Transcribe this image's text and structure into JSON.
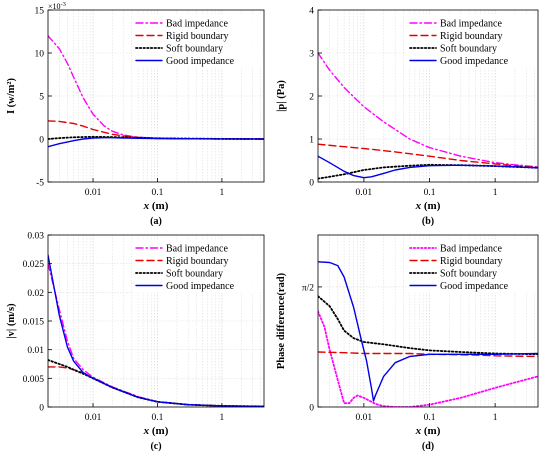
{
  "chart_data": [
    {
      "type": "line",
      "panel_label": "(a)",
      "xlabel": "x (m)",
      "ylabel": "I (w/m²)",
      "y_multiplier_label": "×10",
      "y_multiplier_exp": "-3",
      "xscale": "log",
      "xlim": [
        0.002,
        4.5
      ],
      "ylim": [
        -5,
        15
      ],
      "xticks": [
        0.01,
        0.1,
        1
      ],
      "xtick_labels": [
        "0.01",
        "0.1",
        "1"
      ],
      "yticks": [
        -5,
        0,
        5,
        10,
        15
      ],
      "ytick_labels": [
        "-5",
        "0",
        "5",
        "10",
        "15"
      ],
      "grid": true,
      "legend_position": "top-right",
      "series": [
        {
          "name": "Bad impedance",
          "color": "#ff00ff",
          "dash": "dashdot",
          "x": [
            0.002,
            0.003,
            0.004,
            0.005,
            0.007,
            0.01,
            0.015,
            0.02,
            0.03,
            0.05,
            0.1,
            0.2,
            0.5,
            1,
            2,
            4.5
          ],
          "y": [
            12,
            10.5,
            8.8,
            7.2,
            4.8,
            2.9,
            1.5,
            0.9,
            0.45,
            0.2,
            0.08,
            0.04,
            0.02,
            0.01,
            0.005,
            0.0
          ]
        },
        {
          "name": "Rigid boundary",
          "color": "#e60000",
          "dash": "dashed",
          "x": [
            0.002,
            0.003,
            0.005,
            0.007,
            0.01,
            0.02,
            0.03,
            0.05,
            0.1,
            0.3,
            1,
            4.5
          ],
          "y": [
            2.1,
            2.05,
            1.8,
            1.5,
            1.1,
            0.55,
            0.35,
            0.18,
            0.08,
            0.03,
            0.01,
            0.0
          ]
        },
        {
          "name": "Soft boundary",
          "color": "#000000",
          "dash": "dotted",
          "x": [
            0.002,
            0.003,
            0.005,
            0.01,
            0.02,
            0.05,
            0.1,
            0.5,
            1,
            4.5
          ],
          "y": [
            0.0,
            0.1,
            0.2,
            0.25,
            0.22,
            0.15,
            0.08,
            0.03,
            0.01,
            0.0
          ]
        },
        {
          "name": "Good impedance",
          "color": "#0000e6",
          "dash": "solid",
          "x": [
            0.002,
            0.003,
            0.005,
            0.007,
            0.01,
            0.015,
            0.02,
            0.03,
            0.05,
            0.1,
            0.5,
            1,
            4.5
          ],
          "y": [
            -0.9,
            -0.55,
            -0.2,
            0.0,
            0.1,
            0.15,
            0.15,
            0.12,
            0.08,
            0.05,
            0.02,
            0.01,
            0.0
          ]
        }
      ]
    },
    {
      "type": "line",
      "panel_label": "(b)",
      "xlabel": "x (m)",
      "ylabel": "|p| (Pa)",
      "xscale": "log",
      "xlim": [
        0.002,
        4.5
      ],
      "ylim": [
        0,
        4
      ],
      "xticks": [
        0.01,
        0.1,
        1
      ],
      "xtick_labels": [
        "0.01",
        "0.1",
        "1"
      ],
      "yticks": [
        0,
        1,
        2,
        3,
        4
      ],
      "ytick_labels": [
        "0",
        "1",
        "2",
        "3",
        "4"
      ],
      "grid": true,
      "legend_position": "top-right",
      "series": [
        {
          "name": "Bad impedance",
          "color": "#ff00ff",
          "dash": "dashdot",
          "x": [
            0.002,
            0.003,
            0.005,
            0.01,
            0.02,
            0.05,
            0.1,
            0.3,
            1,
            2,
            4.5
          ],
          "y": [
            3.0,
            2.6,
            2.2,
            1.75,
            1.4,
            1.0,
            0.8,
            0.6,
            0.45,
            0.4,
            0.35
          ]
        },
        {
          "name": "Rigid boundary",
          "color": "#e60000",
          "dash": "dashed",
          "x": [
            0.002,
            0.005,
            0.01,
            0.03,
            0.1,
            0.3,
            1,
            4.5
          ],
          "y": [
            0.88,
            0.82,
            0.78,
            0.7,
            0.6,
            0.5,
            0.42,
            0.33
          ]
        },
        {
          "name": "Soft boundary",
          "color": "#000000",
          "dash": "dotted",
          "x": [
            0.002,
            0.003,
            0.005,
            0.01,
            0.02,
            0.05,
            0.1,
            0.3,
            1,
            4.5
          ],
          "y": [
            0.08,
            0.12,
            0.18,
            0.28,
            0.34,
            0.38,
            0.4,
            0.39,
            0.37,
            0.33
          ]
        },
        {
          "name": "Good impedance",
          "color": "#0000e6",
          "dash": "solid",
          "x": [
            0.002,
            0.003,
            0.005,
            0.007,
            0.01,
            0.013,
            0.02,
            0.03,
            0.05,
            0.1,
            0.3,
            1,
            4.5
          ],
          "y": [
            0.6,
            0.45,
            0.25,
            0.15,
            0.1,
            0.12,
            0.2,
            0.28,
            0.34,
            0.38,
            0.39,
            0.37,
            0.33
          ]
        }
      ]
    },
    {
      "type": "line",
      "panel_label": "(c)",
      "xlabel": "x (m)",
      "ylabel": "|v| (m/s)",
      "xscale": "log",
      "xlim": [
        0.002,
        4.5
      ],
      "ylim": [
        0,
        0.03
      ],
      "xticks": [
        0.01,
        0.1,
        1
      ],
      "xtick_labels": [
        "0.01",
        "0.1",
        "1"
      ],
      "yticks": [
        0,
        0.005,
        0.01,
        0.015,
        0.02,
        0.025,
        0.03
      ],
      "ytick_labels": [
        "0",
        "0.005",
        "0.01",
        "0.015",
        "0.02",
        "0.025",
        "0.03"
      ],
      "grid": true,
      "legend_position": "top-right",
      "series": [
        {
          "name": "Bad impedance",
          "color": "#ff00ff",
          "dash": "dashdot",
          "x": [
            0.002,
            0.003,
            0.004,
            0.005,
            0.007,
            0.01,
            0.02,
            0.05,
            0.1,
            0.3,
            1,
            4.5
          ],
          "y": [
            0.025,
            0.017,
            0.0115,
            0.0085,
            0.0065,
            0.0052,
            0.0035,
            0.0018,
            0.0009,
            0.0004,
            0.0002,
            0.0001
          ]
        },
        {
          "name": "Rigid boundary",
          "color": "#e60000",
          "dash": "dashed",
          "x": [
            0.002,
            0.003,
            0.004,
            0.005,
            0.007,
            0.01,
            0.02,
            0.05,
            0.1,
            0.3,
            1,
            4.5
          ],
          "y": [
            0.007,
            0.007,
            0.0068,
            0.0065,
            0.006,
            0.005,
            0.0034,
            0.0017,
            0.0009,
            0.0004,
            0.0002,
            0.0001
          ]
        },
        {
          "name": "Soft boundary",
          "color": "#000000",
          "dash": "dotted",
          "x": [
            0.002,
            0.003,
            0.004,
            0.005,
            0.007,
            0.01,
            0.02,
            0.05,
            0.1,
            0.3,
            1,
            4.5
          ],
          "y": [
            0.0082,
            0.0075,
            0.007,
            0.0065,
            0.0058,
            0.005,
            0.0034,
            0.0017,
            0.0009,
            0.0004,
            0.0002,
            0.0001
          ]
        },
        {
          "name": "Good impedance",
          "color": "#0000e6",
          "dash": "solid",
          "x": [
            0.002,
            0.003,
            0.004,
            0.005,
            0.007,
            0.01,
            0.02,
            0.05,
            0.1,
            0.3,
            1,
            4.5
          ],
          "y": [
            0.0265,
            0.016,
            0.0105,
            0.008,
            0.006,
            0.005,
            0.0034,
            0.0017,
            0.0009,
            0.0004,
            0.0002,
            0.0001
          ]
        }
      ]
    },
    {
      "type": "line",
      "panel_label": "(d)",
      "xlabel": "x (m)",
      "ylabel": "Phase difference(rad)",
      "xscale": "log",
      "xlim": [
        0.002,
        4.5
      ],
      "ylim": [
        0,
        2.25
      ],
      "xticks": [
        0.01,
        0.1,
        1
      ],
      "xtick_labels": [
        "0.01",
        "0.1",
        "1"
      ],
      "yticks": [
        0,
        1.5708
      ],
      "ytick_labels": [
        "0",
        "π/2"
      ],
      "grid": true,
      "legend_position": "top-right",
      "series": [
        {
          "name": "Bad impedance",
          "color": "#ff00ff",
          "dash": "dotted",
          "x": [
            0.002,
            0.0025,
            0.003,
            0.004,
            0.005,
            0.006,
            0.007,
            0.008,
            0.01,
            0.015,
            0.02,
            0.03,
            0.05,
            0.1,
            0.3,
            1,
            2,
            4.5
          ],
          "y": [
            1.25,
            1.05,
            0.75,
            0.35,
            0.05,
            0.05,
            0.12,
            0.15,
            0.12,
            0.04,
            0.01,
            0.0,
            0.0,
            0.03,
            0.12,
            0.25,
            0.32,
            0.4
          ]
        },
        {
          "name": "Rigid boundary",
          "color": "#e60000",
          "dash": "dashed",
          "x": [
            0.002,
            0.005,
            0.01,
            0.05,
            0.1,
            0.5,
            1,
            4.5
          ],
          "y": [
            0.72,
            0.71,
            0.7,
            0.7,
            0.69,
            0.68,
            0.67,
            0.66
          ]
        },
        {
          "name": "Soft boundary",
          "color": "#000000",
          "dash": "dotted",
          "x": [
            0.002,
            0.003,
            0.004,
            0.005,
            0.007,
            0.01,
            0.02,
            0.05,
            0.1,
            0.3,
            1,
            4.5
          ],
          "y": [
            1.45,
            1.32,
            1.15,
            1.0,
            0.9,
            0.85,
            0.82,
            0.77,
            0.74,
            0.72,
            0.7,
            0.69
          ]
        },
        {
          "name": "Good impedance",
          "color": "#0000e6",
          "dash": "solid",
          "x": [
            0.002,
            0.003,
            0.004,
            0.005,
            0.007,
            0.009,
            0.011,
            0.013,
            0.014,
            0.015,
            0.02,
            0.03,
            0.05,
            0.1,
            0.3,
            1,
            4.5
          ],
          "y": [
            1.9,
            1.89,
            1.85,
            1.7,
            1.3,
            0.9,
            0.6,
            0.25,
            0.08,
            0.15,
            0.4,
            0.58,
            0.66,
            0.69,
            0.69,
            0.69,
            0.7
          ]
        }
      ]
    }
  ]
}
